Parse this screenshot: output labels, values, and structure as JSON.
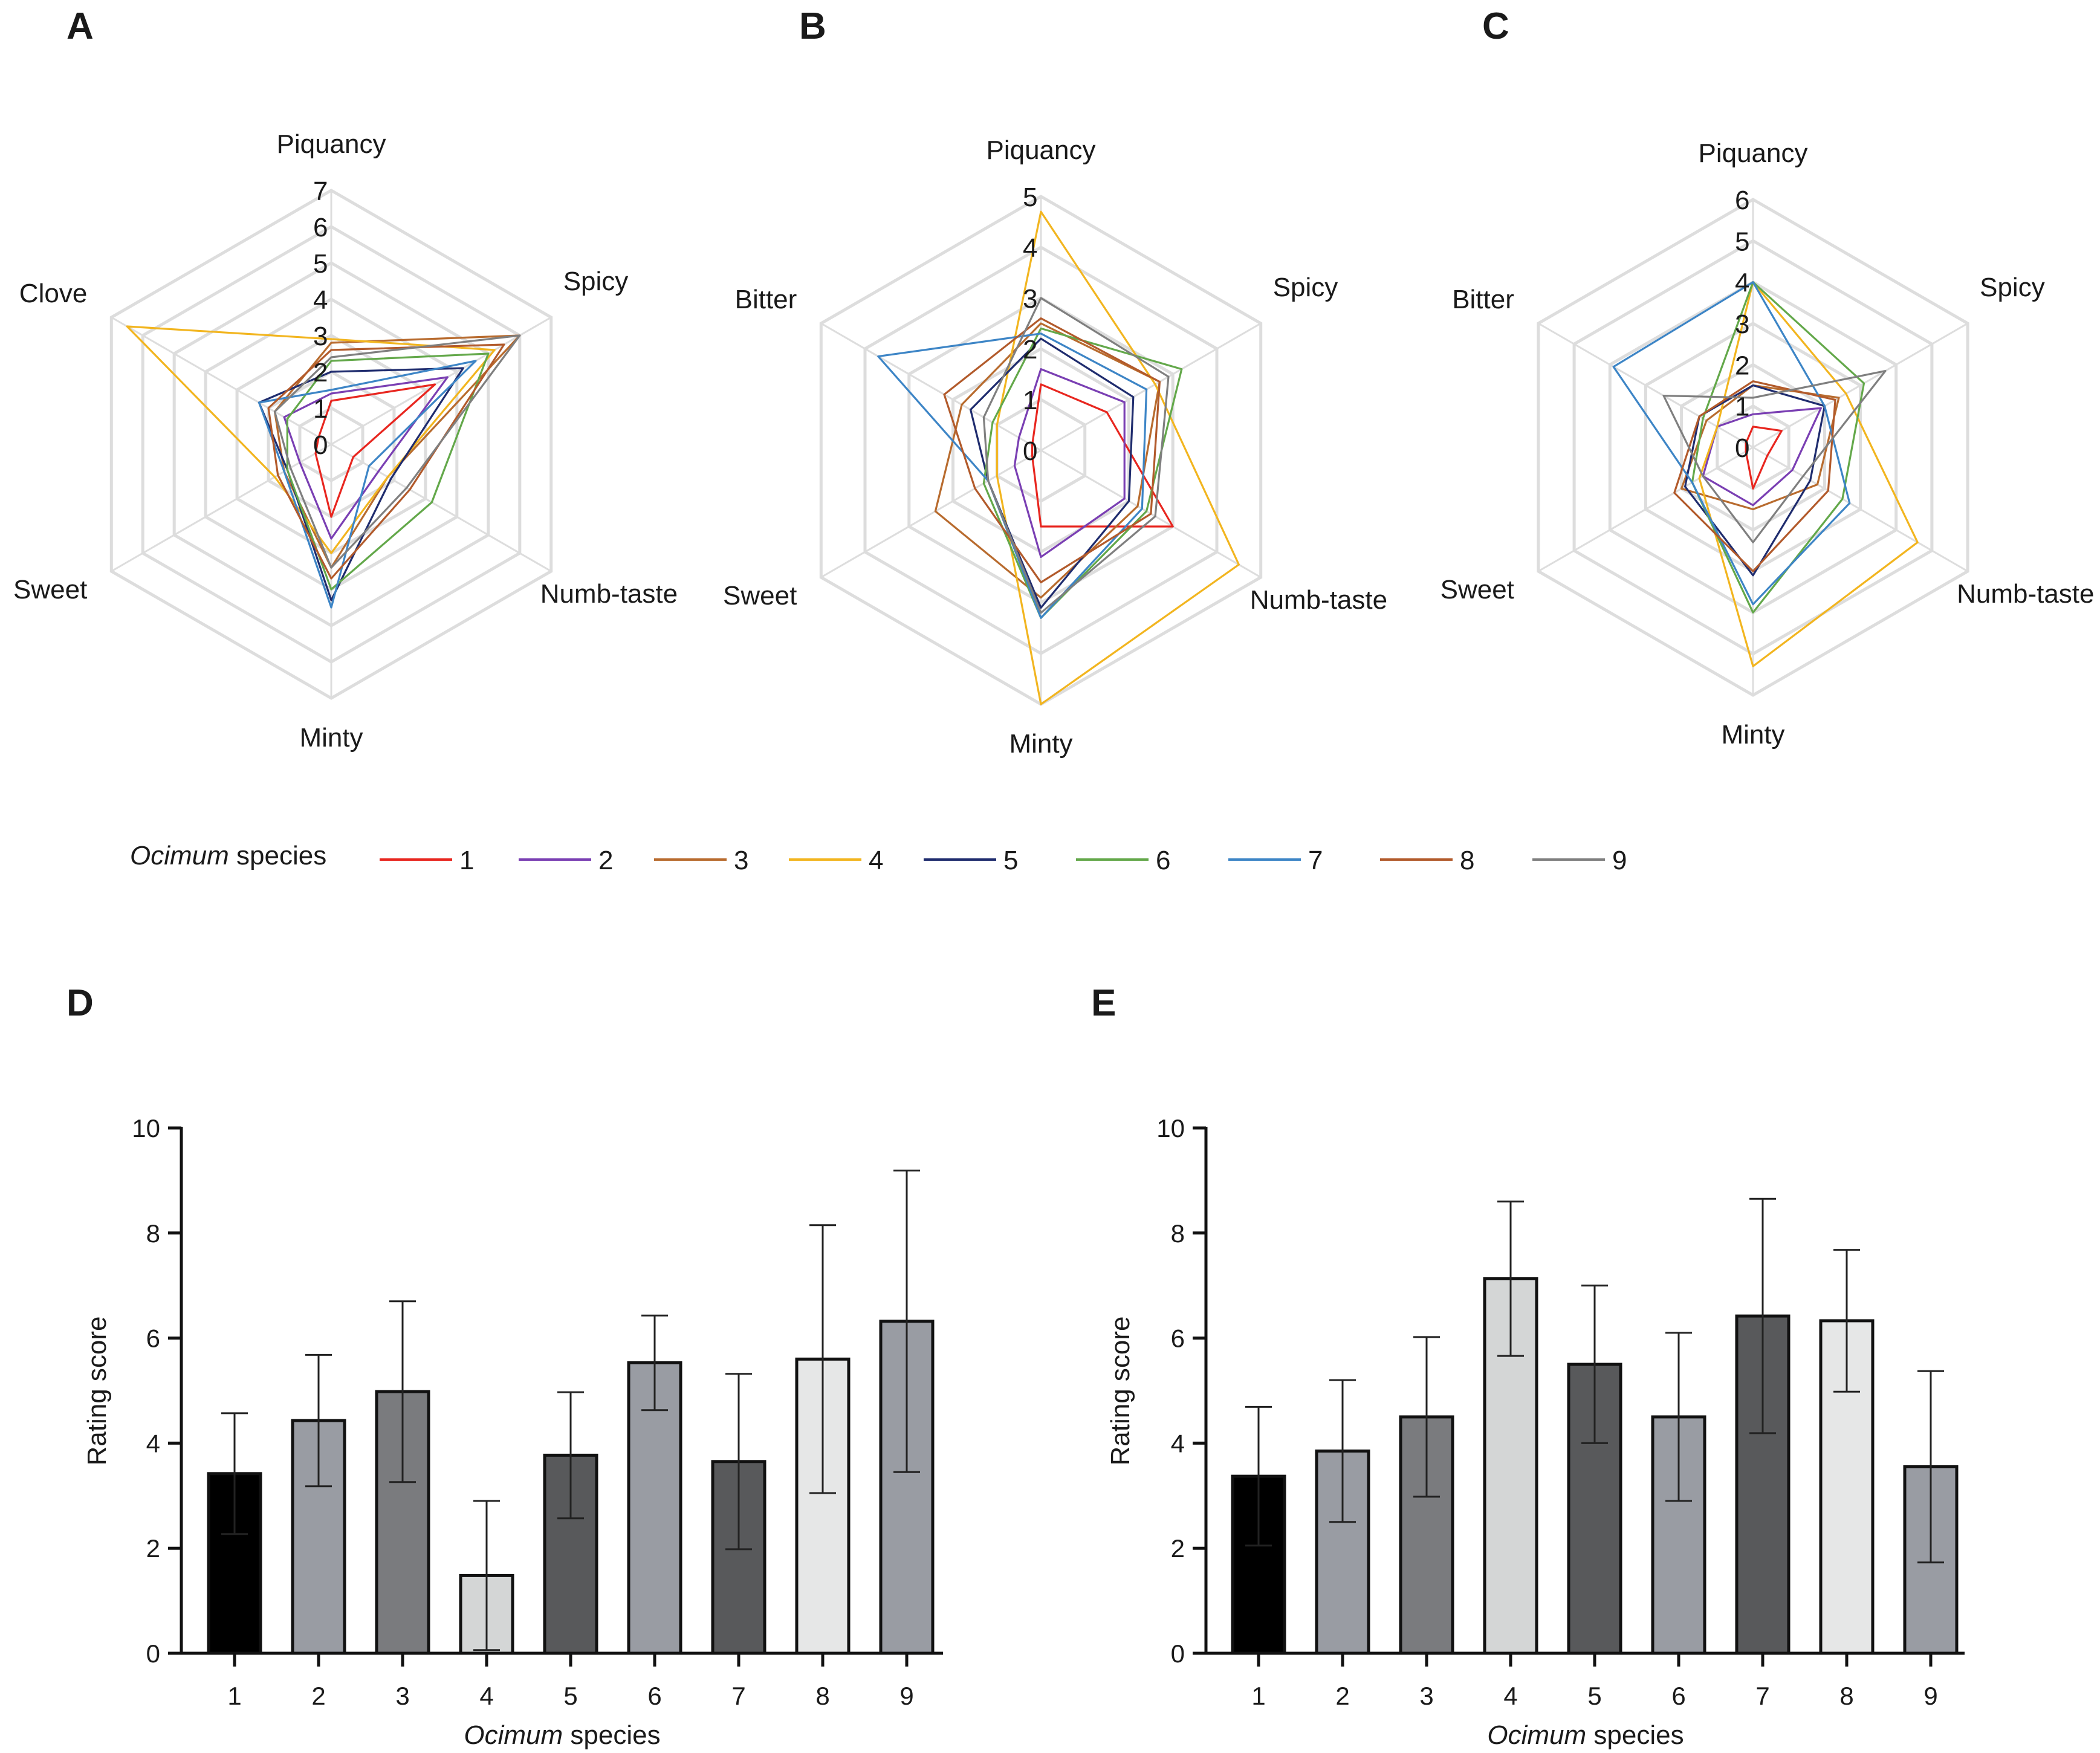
{
  "figure": {
    "legend": {
      "title_italic": "Ocimum",
      "title_rest": " species"
    },
    "palette": [
      "#e8261f",
      "#7a3fb3",
      "#b86b2e",
      "#f2b51f",
      "#1f2c6e",
      "#63a84a",
      "#3d85c6",
      "#b25a2b",
      "#7f7f7f"
    ]
  },
  "chart_data": [
    {
      "panel": "A",
      "type": "radar",
      "axes": [
        "Piquancy",
        "Spicy",
        "Numb-taste",
        "Minty",
        "Sweet",
        "Clove"
      ],
      "ticks": [
        "0",
        "1",
        "2",
        "3",
        "4",
        "5",
        "6",
        "7"
      ],
      "max": 7,
      "series": [
        {
          "name": "1",
          "values": [
            1.2,
            3.3,
            0.7,
            2.0,
            0.5,
            0.4
          ]
        },
        {
          "name": "2",
          "values": [
            1.4,
            3.7,
            1.5,
            2.6,
            1.0,
            1.5
          ]
        },
        {
          "name": "3",
          "values": [
            2.8,
            6.0,
            1.8,
            3.4,
            1.5,
            1.8
          ]
        },
        {
          "name": "4",
          "values": [
            2.9,
            5.2,
            1.8,
            3.0,
            1.8,
            6.5
          ]
        },
        {
          "name": "5",
          "values": [
            2.0,
            4.2,
            1.9,
            4.3,
            1.4,
            2.3
          ]
        },
        {
          "name": "6",
          "values": [
            2.3,
            5.0,
            3.2,
            4.0,
            1.4,
            1.4
          ]
        },
        {
          "name": "7",
          "values": [
            1.5,
            4.6,
            1.2,
            4.5,
            1.5,
            2.3
          ]
        },
        {
          "name": "8",
          "values": [
            2.6,
            5.5,
            2.5,
            3.7,
            1.7,
            2.0
          ]
        },
        {
          "name": "9",
          "values": [
            2.4,
            6.0,
            2.4,
            3.4,
            1.3,
            1.8
          ]
        }
      ]
    },
    {
      "panel": "B",
      "type": "radar",
      "axes": [
        "Piquancy",
        "Spicy",
        "Numb-taste",
        "Minty",
        "Sweet",
        "Bitter"
      ],
      "ticks": [
        "0",
        "1",
        "2",
        "3",
        "4",
        "5"
      ],
      "max": 5,
      "series": [
        {
          "name": "1",
          "values": [
            1.3,
            1.5,
            3.0,
            1.5,
            0.2,
            0.2
          ]
        },
        {
          "name": "2",
          "values": [
            1.6,
            1.9,
            1.9,
            2.1,
            0.6,
            0.5
          ]
        },
        {
          "name": "3",
          "values": [
            2.5,
            2.7,
            2.2,
            2.9,
            2.4,
            1.8
          ]
        },
        {
          "name": "4",
          "values": [
            4.7,
            2.6,
            4.5,
            5.0,
            1.0,
            1.0
          ]
        },
        {
          "name": "5",
          "values": [
            2.2,
            2.1,
            2.0,
            3.1,
            1.2,
            1.6
          ]
        },
        {
          "name": "6",
          "values": [
            2.4,
            3.2,
            2.4,
            3.3,
            1.3,
            1.1
          ]
        },
        {
          "name": "7",
          "values": [
            2.3,
            2.4,
            2.3,
            3.3,
            1.2,
            3.7
          ]
        },
        {
          "name": "8",
          "values": [
            2.6,
            2.7,
            2.5,
            2.6,
            1.5,
            2.2
          ]
        },
        {
          "name": "9",
          "values": [
            3.0,
            2.9,
            2.6,
            3.2,
            1.2,
            1.3
          ]
        }
      ]
    },
    {
      "panel": "C",
      "type": "radar",
      "axes": [
        "Piquancy",
        "Spicy",
        "Numb-taste",
        "Minty",
        "Sweet",
        "Bitter"
      ],
      "ticks": [
        "0",
        "1",
        "2",
        "3",
        "4",
        "5",
        "6"
      ],
      "max": 6,
      "series": [
        {
          "name": "1",
          "values": [
            0.5,
            0.8,
            0.4,
            1.0,
            0.2,
            0.2
          ]
        },
        {
          "name": "2",
          "values": [
            0.8,
            1.9,
            1.1,
            1.4,
            1.4,
            1.0
          ]
        },
        {
          "name": "3",
          "values": [
            1.5,
            2.4,
            1.8,
            1.5,
            2.0,
            1.3
          ]
        },
        {
          "name": "4",
          "values": [
            4.0,
            2.6,
            4.6,
            5.3,
            1.5,
            1.0
          ]
        },
        {
          "name": "5",
          "values": [
            1.5,
            2.0,
            1.6,
            3.1,
            1.9,
            1.5
          ]
        },
        {
          "name": "6",
          "values": [
            4.0,
            3.1,
            2.5,
            4.0,
            1.7,
            1.4
          ]
        },
        {
          "name": "7",
          "values": [
            4.0,
            2.0,
            2.7,
            3.8,
            1.7,
            3.9
          ]
        },
        {
          "name": "8",
          "values": [
            1.6,
            2.3,
            2.1,
            3.0,
            2.2,
            1.5
          ]
        },
        {
          "name": "9",
          "values": [
            1.2,
            3.7,
            1.4,
            2.3,
            1.4,
            2.5
          ]
        }
      ]
    },
    {
      "panel": "D",
      "type": "bar",
      "categories": [
        "1",
        "2",
        "3",
        "4",
        "5",
        "6",
        "7",
        "8",
        "9"
      ],
      "values": [
        3.42,
        4.43,
        4.98,
        1.48,
        3.77,
        5.53,
        3.65,
        5.6,
        6.32
      ],
      "errors": [
        1.15,
        1.25,
        1.72,
        1.42,
        1.2,
        0.9,
        1.67,
        2.55,
        2.87
      ],
      "colors": [
        "#000000",
        "#999ca3",
        "#7a7b7e",
        "#d4d6d6",
        "#58595b",
        "#999ca3",
        "#58595b",
        "#e6e7e7",
        "#999ca3"
      ],
      "ylabel": "Rating score",
      "xlabel_italic": "Ocimum",
      "xlabel_rest": " species",
      "ylim": [
        0,
        10
      ],
      "yticks": [
        "0",
        "2",
        "4",
        "6",
        "8",
        "10"
      ]
    },
    {
      "panel": "E",
      "type": "bar",
      "categories": [
        "1",
        "2",
        "3",
        "4",
        "5",
        "6",
        "7",
        "8",
        "9"
      ],
      "values": [
        3.37,
        3.85,
        4.5,
        7.13,
        5.5,
        4.5,
        6.42,
        6.33,
        3.55
      ],
      "errors": [
        1.32,
        1.35,
        1.52,
        1.47,
        1.5,
        1.6,
        2.23,
        1.35,
        1.82
      ],
      "colors": [
        "#000000",
        "#999ca3",
        "#7a7b7e",
        "#d4d6d6",
        "#58595b",
        "#999ca3",
        "#58595b",
        "#e6e7e7",
        "#999ca3"
      ],
      "ylabel": "Rating score",
      "xlabel_italic": "Ocimum",
      "xlabel_rest": " species",
      "ylim": [
        0,
        10
      ],
      "yticks": [
        "0",
        "2",
        "4",
        "6",
        "8",
        "10"
      ]
    }
  ]
}
